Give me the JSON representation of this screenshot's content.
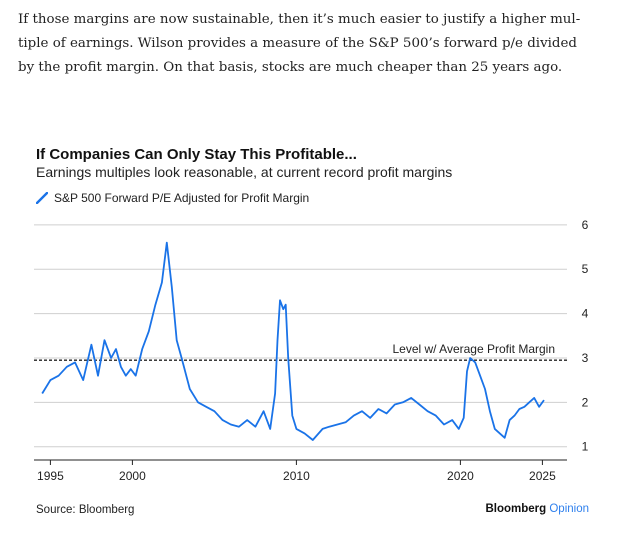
{
  "article": {
    "lines": [
      "If those margins are now sustainable, then it’s much easier to justify a higher mul-",
      "tiple of earnings. Wilson provides a measure of the S&P 500’s forward p/e divided",
      "by the profit margin. On that basis, stocks are much cheaper than 25 years ago."
    ]
  },
  "source": "Source: Bloomberg",
  "brand": {
    "name": "Bloomberg",
    "suffix": "Opinion"
  },
  "colors": {
    "series": "#1a73e8",
    "grid": "#cfcfcf",
    "reference": "#222222",
    "brand_accent": "#2f80ed"
  },
  "chart_data": {
    "type": "line",
    "title": "If Companies Can Only Stay This Profitable...",
    "subtitle": "Earnings multiples look reasonable, at current record profit margins",
    "xlabel": "",
    "ylabel": "",
    "xlim": [
      1994,
      2026.5
    ],
    "ylim": [
      0.7,
      6.2
    ],
    "x_ticks": [
      1995,
      2000,
      2010,
      2020,
      2025
    ],
    "y_ticks": [
      1,
      2,
      3,
      4,
      5,
      6
    ],
    "y_axis_side": "right",
    "grid": "horizontal",
    "legend": "top-left",
    "series": [
      {
        "name": "S&P 500 Forward P/E Adjusted for Profit Margin",
        "x": [
          1994.5,
          1995.0,
          1995.5,
          1996.0,
          1996.5,
          1997.0,
          1997.5,
          1997.9,
          1998.3,
          1998.7,
          1999.0,
          1999.3,
          1999.6,
          1999.9,
          2000.2,
          2000.6,
          2001.0,
          2001.4,
          2001.8,
          2002.1,
          2002.4,
          2002.7,
          2003.0,
          2003.5,
          2004.0,
          2004.5,
          2005.0,
          2005.5,
          2006.0,
          2006.5,
          2007.0,
          2007.5,
          2008.0,
          2008.4,
          2008.7,
          2008.85,
          2009.0,
          2009.2,
          2009.35,
          2009.5,
          2009.75,
          2010.0,
          2010.5,
          2011.0,
          2011.6,
          2012.0,
          2012.5,
          2013.0,
          2013.5,
          2014.0,
          2014.5,
          2015.0,
          2015.5,
          2016.0,
          2016.5,
          2017.0,
          2017.5,
          2018.0,
          2018.5,
          2019.0,
          2019.5,
          2019.9,
          2020.2,
          2020.4,
          2020.6,
          2020.9,
          2021.2,
          2021.5,
          2021.8,
          2022.1,
          2022.4,
          2022.7,
          2023.0,
          2023.3,
          2023.6,
          2023.9,
          2024.2,
          2024.5,
          2024.8,
          2025.1
        ],
        "values": [
          2.2,
          2.5,
          2.6,
          2.8,
          2.9,
          2.5,
          3.3,
          2.6,
          3.4,
          3.0,
          3.2,
          2.8,
          2.6,
          2.75,
          2.6,
          3.2,
          3.6,
          4.2,
          4.7,
          5.6,
          4.6,
          3.4,
          3.0,
          2.3,
          2.0,
          1.9,
          1.8,
          1.6,
          1.5,
          1.45,
          1.6,
          1.45,
          1.8,
          1.4,
          2.2,
          3.4,
          4.3,
          4.1,
          4.2,
          3.0,
          1.7,
          1.4,
          1.3,
          1.15,
          1.4,
          1.45,
          1.5,
          1.55,
          1.7,
          1.8,
          1.65,
          1.85,
          1.75,
          1.95,
          2.0,
          2.1,
          1.95,
          1.8,
          1.7,
          1.5,
          1.6,
          1.4,
          1.65,
          2.7,
          3.0,
          2.9,
          2.6,
          2.3,
          1.8,
          1.4,
          1.3,
          1.2,
          1.6,
          1.7,
          1.85,
          1.9,
          2.0,
          2.1,
          1.9,
          2.05
        ]
      }
    ],
    "reference_lines": [
      {
        "y": 2.95,
        "label": "Level w/ Average Profit Margin",
        "style": "dashed"
      }
    ]
  }
}
